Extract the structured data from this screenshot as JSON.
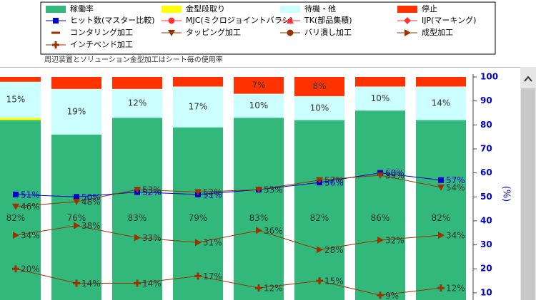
{
  "chart_data": {
    "type": "bar-line",
    "subtitle": "周辺装置とソリューション金型加工はシート毎の使用率",
    "y_label": "(%)",
    "categories": [
      null,
      null,
      null,
      null,
      null,
      null,
      null,
      null
    ],
    "ylim": [
      7,
      100
    ],
    "yticks": [
      10,
      20,
      30,
      40,
      50,
      60,
      70,
      80,
      90,
      100
    ],
    "series": [
      {
        "name": "稼働率",
        "kind": "bar",
        "color": "#33b87c",
        "marker": "rect",
        "values": [
          82,
          76,
          83,
          79,
          83,
          82,
          86,
          82
        ],
        "value_labels": [
          "82%",
          "76%",
          "83%",
          "79%",
          "83%",
          "82%",
          "86%",
          "82%"
        ]
      },
      {
        "name": "金型段取り",
        "kind": "bar",
        "color": "#ffff00",
        "marker": "rect",
        "values": [
          1,
          0,
          0,
          0,
          0,
          0,
          0,
          0
        ],
        "value_labels": [
          null,
          null,
          null,
          null,
          null,
          null,
          null,
          null
        ]
      },
      {
        "name": "待機・他",
        "kind": "bar",
        "color": "#ccffff",
        "marker": "rect",
        "values": [
          15,
          19,
          12,
          17,
          10,
          10,
          10,
          14
        ],
        "value_labels": [
          "15%",
          "19%",
          "12%",
          "17%",
          "10%",
          "10%",
          "10%",
          "14%"
        ]
      },
      {
        "name": "停止",
        "kind": "bar",
        "color": "#ff3300",
        "marker": "rect",
        "values": [
          2,
          5,
          5,
          4,
          7,
          8,
          4,
          4
        ],
        "value_labels": [
          null,
          null,
          null,
          null,
          "7%",
          "8%",
          null,
          null
        ]
      },
      {
        "name": "ヒット数(マスター比較)",
        "kind": "line",
        "color": "#0000cc",
        "marker": "square",
        "values": [
          51,
          50,
          52,
          51,
          53,
          56,
          60,
          57
        ],
        "value_labels": [
          "51%",
          "50%",
          "52%",
          "51%",
          "53%",
          "56%",
          "60%",
          "57%"
        ]
      },
      {
        "name": "MJC(ミクロジョイントバラシ)",
        "kind": "line",
        "color": "#ff3333",
        "marker": "circle",
        "values": [
          null,
          null,
          null,
          null,
          null,
          null,
          null,
          null
        ]
      },
      {
        "name": "TK(部品集積)",
        "kind": "line",
        "color": "#ff3333",
        "marker": "triangle-up",
        "values": [
          null,
          null,
          null,
          null,
          null,
          null,
          null,
          null
        ]
      },
      {
        "name": "IJP(マーキング)",
        "kind": "line",
        "color": "#ff3333",
        "marker": "diamond",
        "values": [
          null,
          null,
          null,
          null,
          null,
          null,
          null,
          null
        ]
      },
      {
        "name": "コンタリング加工",
        "kind": "line",
        "color": "#993300",
        "marker": "dash",
        "values": [
          null,
          null,
          null,
          null,
          null,
          null,
          null,
          null
        ]
      },
      {
        "name": "タッピング加工",
        "kind": "line",
        "color": "#993300",
        "marker": "triangle-down",
        "values": [
          46,
          48,
          53,
          52,
          53,
          57,
          59,
          54
        ],
        "value_labels": [
          "46%",
          "48%",
          "53%",
          "52%",
          "53%",
          "57%",
          "59%",
          "54%"
        ]
      },
      {
        "name": "バリ潰し加工",
        "kind": "line",
        "color": "#993300",
        "marker": "circle",
        "values": [
          null,
          null,
          null,
          null,
          null,
          null,
          null,
          null
        ]
      },
      {
        "name": "成型加工",
        "kind": "line",
        "color": "#993300",
        "marker": "triangle-right",
        "values": [
          34,
          38,
          33,
          31,
          36,
          28,
          32,
          34
        ],
        "value_labels": [
          "34%",
          "38%",
          "33%",
          "31%",
          "36%",
          "28%",
          "32%",
          "34%"
        ]
      },
      {
        "name": "インチベンド加工",
        "kind": "line",
        "color": "#993300",
        "marker": "plus",
        "values": [
          20,
          14,
          14,
          17,
          12,
          15,
          9,
          12
        ],
        "value_labels": [
          "20%",
          "14%",
          "14%",
          "17%",
          "12%",
          "15%",
          "9%",
          "12%"
        ]
      }
    ]
  }
}
